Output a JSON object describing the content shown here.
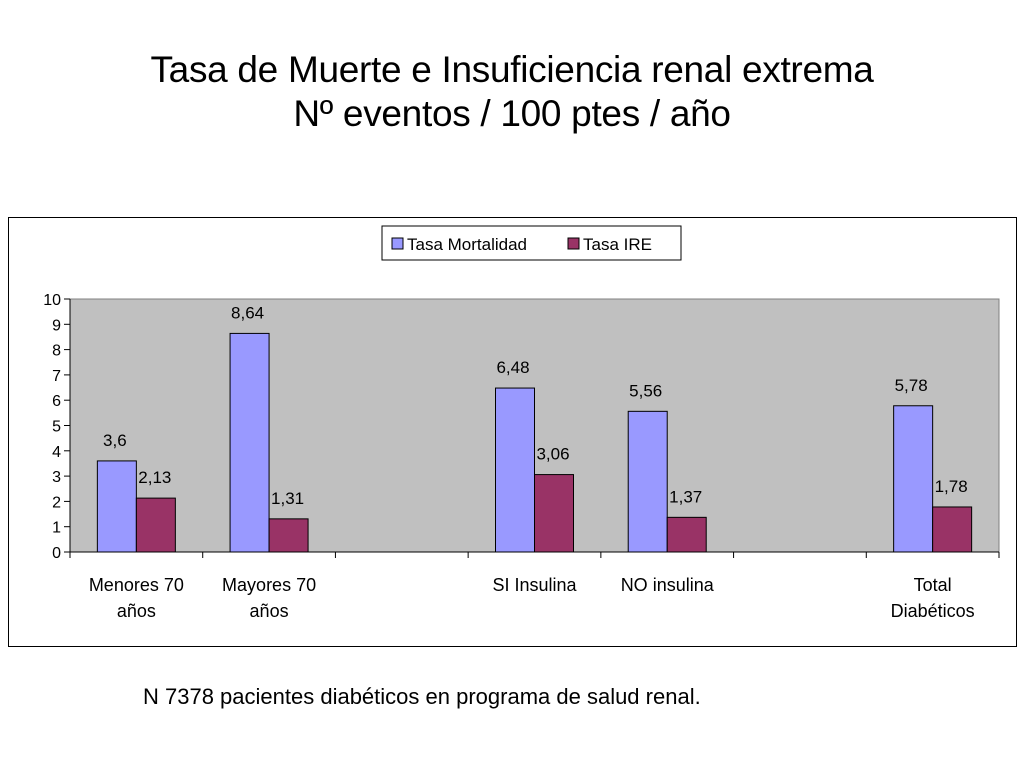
{
  "title": {
    "line1": "Tasa de Muerte e Insuficiencia renal extrema",
    "line2": "Nº eventos / 100 ptes / año"
  },
  "footnote": "N 7378 pacientes diabéticos en programa de salud renal.",
  "colors": {
    "series1": "#9999ff",
    "series2": "#993366",
    "plot_background": "#c0c0c0"
  },
  "chart_data": {
    "type": "bar",
    "categories": [
      [
        "Menores 70",
        "años"
      ],
      [
        "Mayores 70",
        "años"
      ],
      [],
      [
        "SI Insulina"
      ],
      [
        "NO insulina"
      ],
      [],
      [
        "Total",
        "Diabéticos"
      ]
    ],
    "series": [
      {
        "name": "Tasa Mortalidad",
        "values": [
          3.6,
          8.64,
          null,
          6.48,
          5.56,
          null,
          5.78
        ],
        "labels": [
          "3,6",
          "8,64",
          "",
          "6,48",
          "5,56",
          "",
          "5,78"
        ]
      },
      {
        "name": "Tasa IRE",
        "values": [
          2.13,
          1.31,
          null,
          3.06,
          1.37,
          null,
          1.78
        ],
        "labels": [
          "2,13",
          "1,31",
          "",
          "3,06",
          "1,37",
          "",
          "1,78"
        ]
      }
    ],
    "ylim": [
      0,
      10
    ],
    "yticks": [
      "0",
      "1",
      "2",
      "3",
      "4",
      "5",
      "6",
      "7",
      "8",
      "9",
      "10"
    ],
    "legend_position": "top-center",
    "grid": false
  }
}
